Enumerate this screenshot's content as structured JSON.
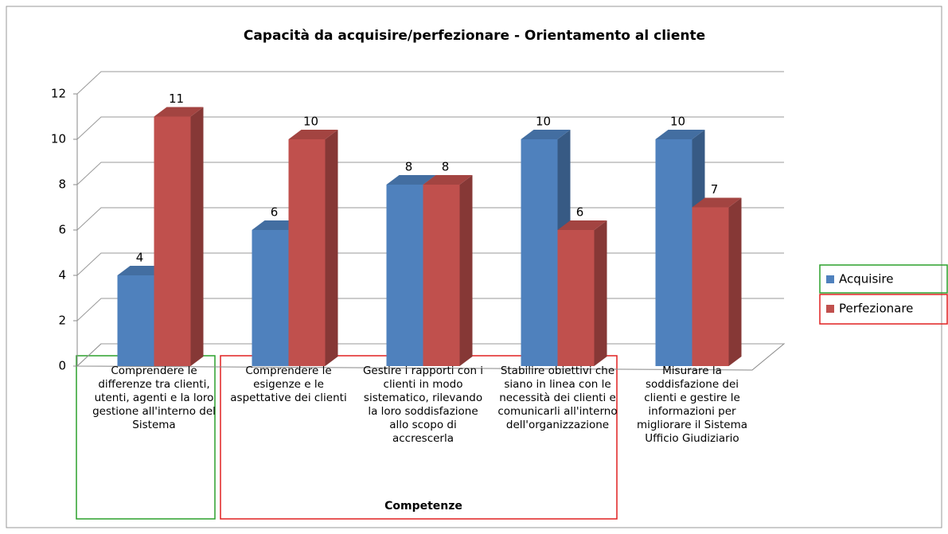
{
  "chart_data": {
    "type": "bar3d",
    "title": "Capacità da acquisire/perfezionare - Orientamento al cliente",
    "xlabel": "Competenze",
    "categories": [
      "Comprendere le differenze tra clienti, utenti, agenti e la loro gestione all'interno del Sistema",
      "Comprendere le esigenze e le aspettative dei clienti",
      "Gestire i rapporti con i clienti in modo sistematico, rilevando la loro soddisfazione allo scopo di accrescerla",
      "Stabilire obiettivi che siano in linea con le necessità dei clienti e comunicarli all'interno dell'organizzazione",
      "Misurare la soddisfazione dei clienti e gestire le informazioni per migliorare il Sistema Ufficio Giudiziario"
    ],
    "series": [
      {
        "name": "Acquisire",
        "color": "#4f81bd",
        "values": [
          4,
          6,
          8,
          10,
          10
        ]
      },
      {
        "name": "Perfezionare",
        "color": "#c0504d",
        "values": [
          11,
          10,
          8,
          6,
          7
        ]
      }
    ],
    "ylim": [
      0,
      12
    ],
    "yticks": [
      0,
      2,
      4,
      6,
      8,
      10,
      12
    ],
    "grid": true,
    "legend": "right"
  }
}
